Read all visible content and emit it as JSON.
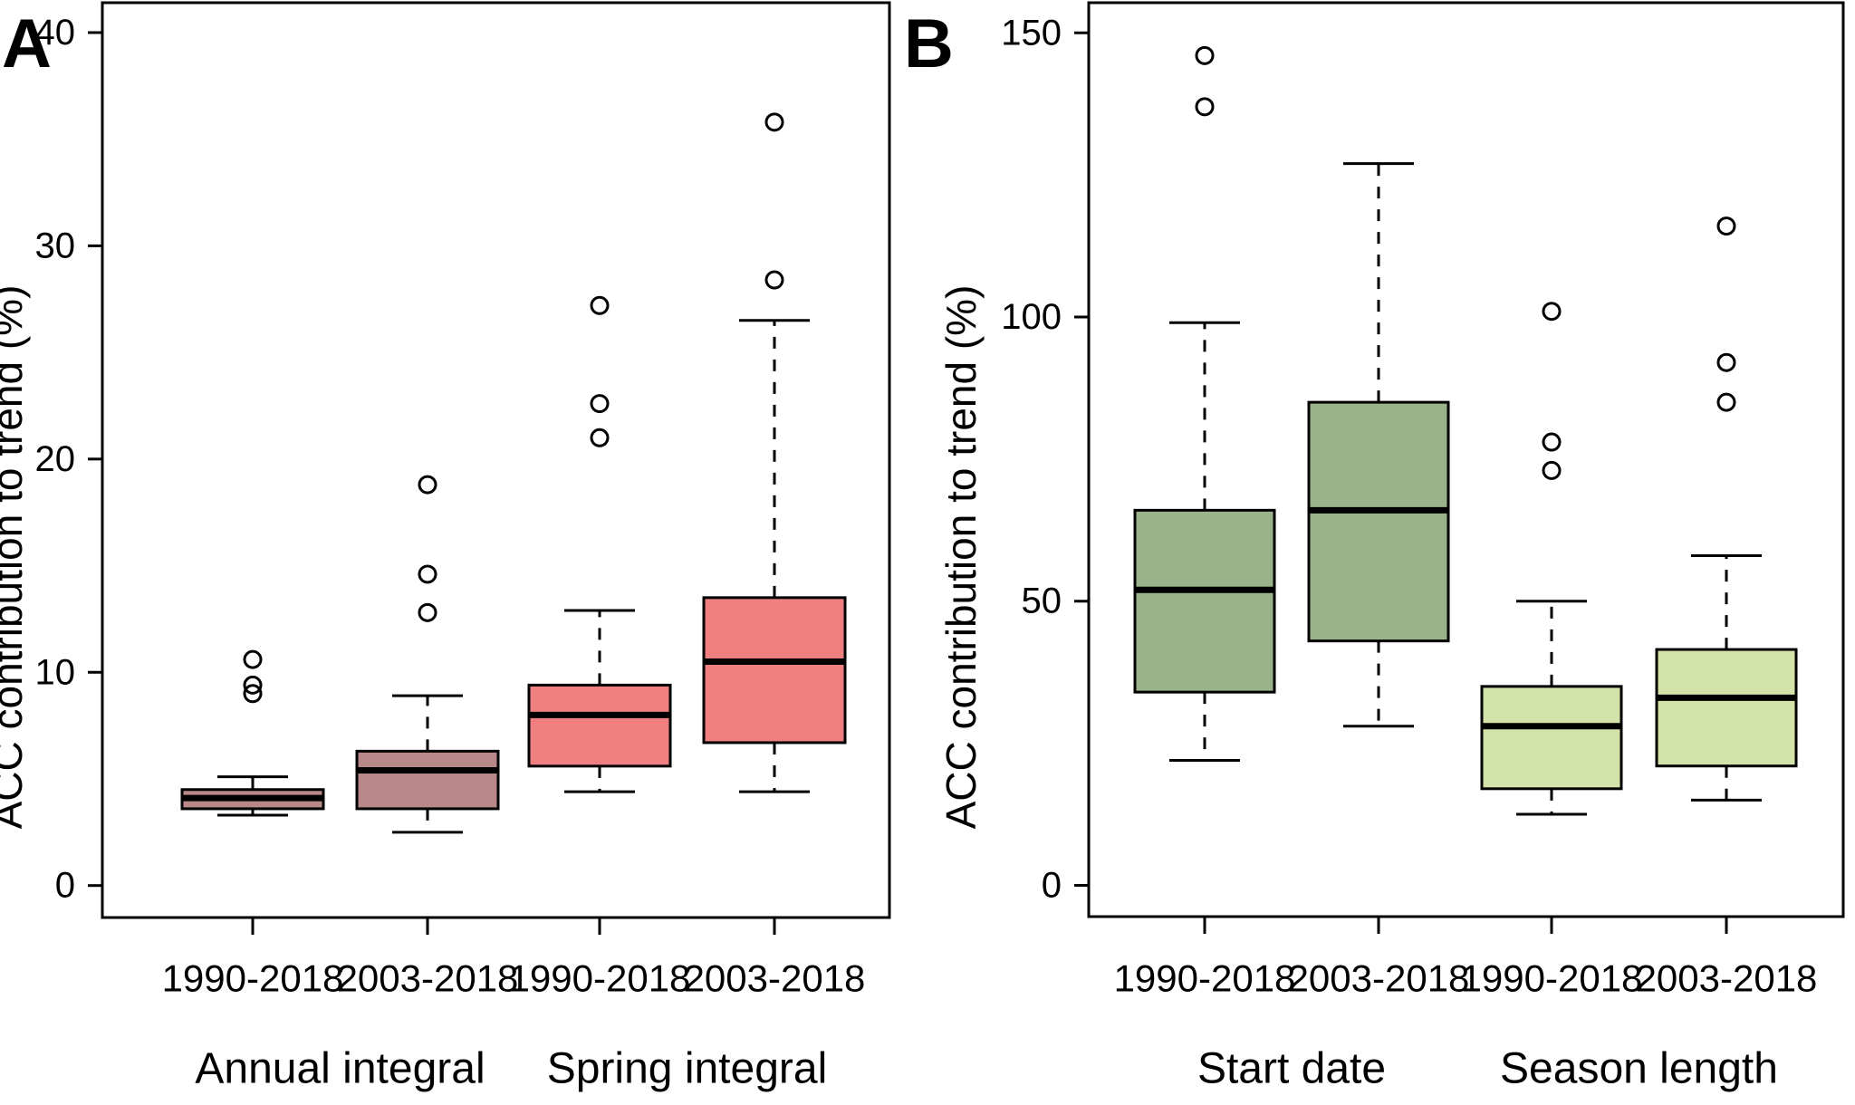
{
  "figure": {
    "background": "#ffffff",
    "panel_letters": [
      "A",
      "B"
    ]
  },
  "chart_data": [
    {
      "type": "boxplot",
      "panel_label": "A",
      "ylabel": "ACC contribution to trend (%)",
      "y_ticks": [
        0,
        10,
        20,
        30,
        40
      ],
      "ylim": [
        -1.5,
        41.4
      ],
      "grid": false,
      "x_tick_labels": [
        "1990-2018",
        "2003-2018",
        "1990-2018",
        "2003-2018"
      ],
      "group_labels": [
        "Annual integral",
        "Spring integral"
      ],
      "series": [
        {
          "group": "Annual integral",
          "label": "1990-2018",
          "fill": "#b98989",
          "whisker_low": 3.3,
          "q1": 3.6,
          "median": 4.1,
          "q3": 4.5,
          "whisker_high": 5.1,
          "outliers": [
            9.0,
            9.4,
            10.6
          ]
        },
        {
          "group": "Annual integral",
          "label": "2003-2018",
          "fill": "#b98989",
          "whisker_low": 2.5,
          "q1": 3.6,
          "median": 5.4,
          "q3": 6.3,
          "whisker_high": 8.9,
          "outliers": [
            12.8,
            14.6,
            18.8
          ]
        },
        {
          "group": "Spring integral",
          "label": "1990-2018",
          "fill": "#f08080",
          "whisker_low": 4.4,
          "q1": 5.6,
          "median": 8.0,
          "q3": 9.4,
          "whisker_high": 12.9,
          "outliers": [
            21.0,
            22.6,
            27.2
          ]
        },
        {
          "group": "Spring integral",
          "label": "2003-2018",
          "fill": "#f08080",
          "whisker_low": 4.4,
          "q1": 6.7,
          "median": 10.5,
          "q3": 13.5,
          "whisker_high": 26.5,
          "outliers": [
            28.4,
            35.8
          ]
        }
      ]
    },
    {
      "type": "boxplot",
      "panel_label": "B",
      "ylabel": "ACC contribution to trend (%)",
      "y_ticks": [
        0,
        50,
        100,
        150
      ],
      "ylim": [
        -5.5,
        155.3
      ],
      "grid": false,
      "x_tick_labels": [
        "1990-2018",
        "2003-2018",
        "1990-2018",
        "2003-2018"
      ],
      "group_labels": [
        "Start date",
        "Season length"
      ],
      "series": [
        {
          "group": "Start date",
          "label": "1990-2018",
          "fill": "#9ab38a",
          "whisker_low": 22,
          "q1": 34,
          "median": 52,
          "q3": 66,
          "whisker_high": 99,
          "outliers": [
            137,
            146
          ]
        },
        {
          "group": "Start date",
          "label": "2003-2018",
          "fill": "#9ab38a",
          "whisker_low": 28,
          "q1": 43,
          "median": 66,
          "q3": 85,
          "whisker_high": 127,
          "outliers": []
        },
        {
          "group": "Season length",
          "label": "1990-2018",
          "fill": "#d4e3a9",
          "whisker_low": 12.5,
          "q1": 17,
          "median": 28,
          "q3": 35,
          "whisker_high": 50,
          "outliers": [
            73,
            78,
            101
          ]
        },
        {
          "group": "Season length",
          "label": "2003-2018",
          "fill": "#d4e3a9",
          "whisker_low": 15,
          "q1": 21,
          "median": 33,
          "q3": 41.5,
          "whisker_high": 58,
          "outliers": [
            85,
            92,
            116
          ]
        }
      ]
    }
  ]
}
